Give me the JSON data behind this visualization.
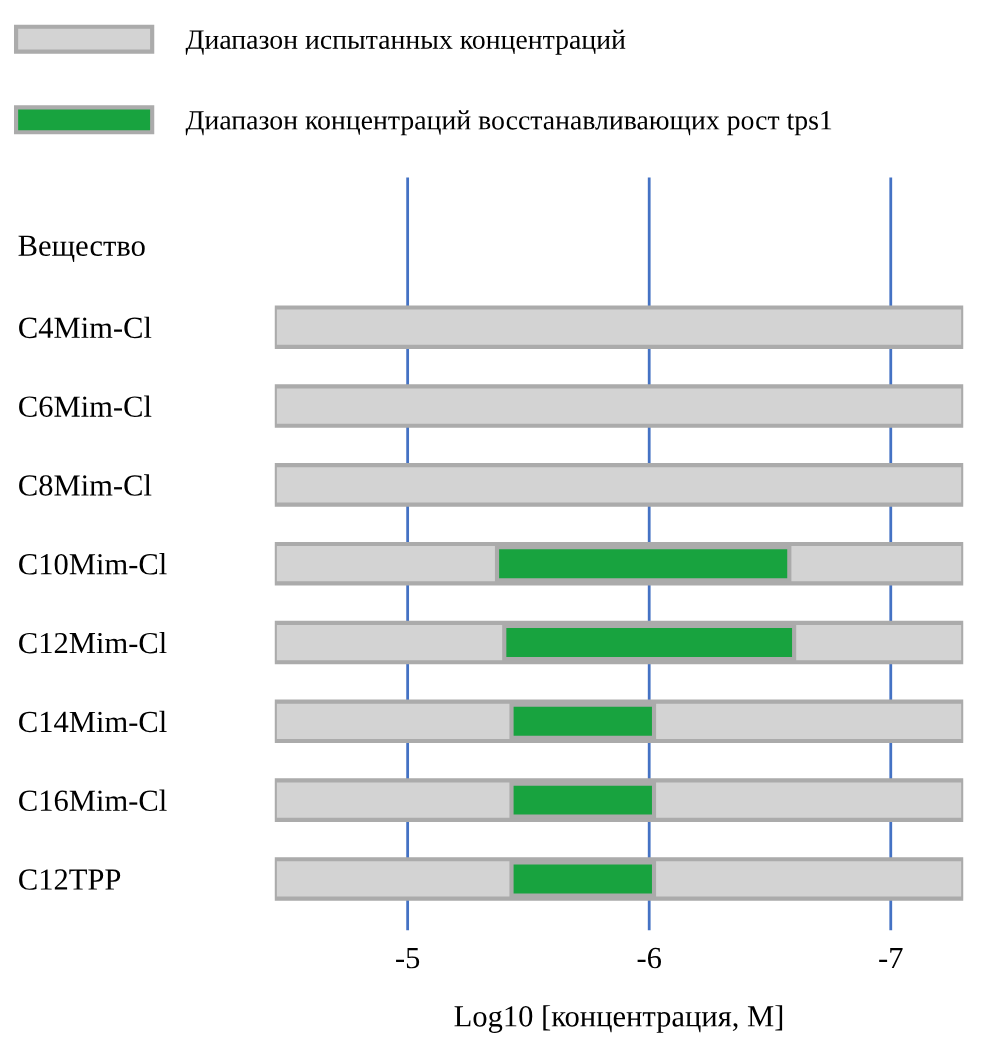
{
  "chart_data": {
    "type": "bar",
    "orientation": "horizontal",
    "ylabel": "Вещество",
    "xlabel": "Log10 [концентрация, M]",
    "categories": [
      "C4Mim-Cl",
      "C6Mim-Cl",
      "C8Mim-Cl",
      "C10Mim-Cl",
      "C12Mim-Cl",
      "C14Mim-Cl",
      "C16Mim-Cl",
      "C12TPP"
    ],
    "series": [
      {
        "name": "Диапазон испытанных концентраций",
        "color": "#d3d3d3",
        "base": [
          -4.45,
          -4.45,
          -4.45,
          -4.45,
          -4.45,
          -4.45,
          -4.45,
          -4.45
        ],
        "values": [
          -2.85,
          -2.85,
          -2.85,
          -2.85,
          -2.85,
          -2.85,
          -2.85,
          -2.85
        ]
      },
      {
        "name": "Диапазон концентраций восстанавливающих рост tps1",
        "color": "#18a33f",
        "base": [
          null,
          null,
          null,
          -5.37,
          -5.4,
          -5.43,
          -5.43,
          -5.43
        ],
        "values": [
          null,
          null,
          null,
          -1.21,
          -1.2,
          -0.59,
          -0.59,
          -0.59
        ]
      }
    ],
    "xlim": [
      -4.45,
      -7.3
    ],
    "xticks": [
      -5,
      -6,
      -7
    ],
    "grid": "x",
    "legend": "top"
  }
}
